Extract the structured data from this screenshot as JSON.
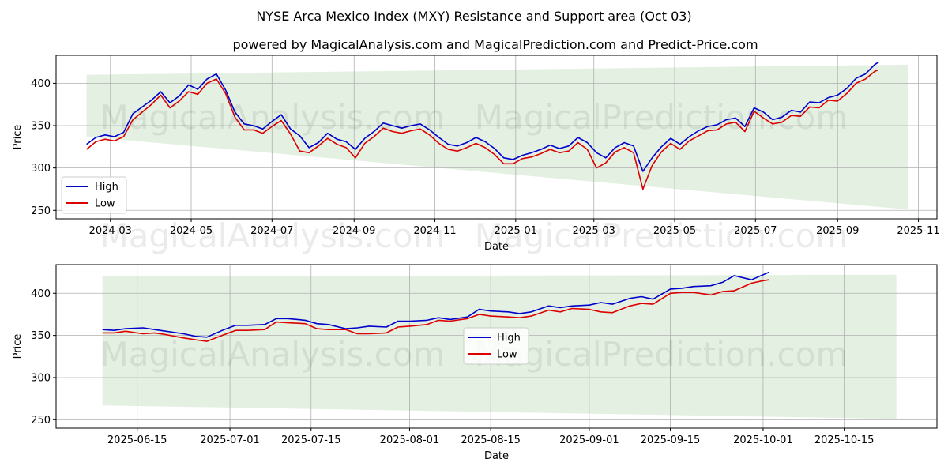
{
  "title": "NYSE Arca Mexico Index (MXY) Resistance and Support area (Oct 03)",
  "subtitle": "powered by MagicalAnalysis.com and MagicalPrediction.com and Predict-Price.com",
  "watermarks": [
    "MagicalAnalysis.com",
    "MagicalPrediction.com"
  ],
  "colors": {
    "high": "#0000cc",
    "low": "#dd0000",
    "band": "#e4f1e2",
    "grid": "#b0b0b0"
  },
  "chart_data": [
    {
      "type": "line",
      "xlabel": "Date",
      "ylabel": "Price",
      "xlim": [
        "2024-01-20",
        "2025-11-15"
      ],
      "ylim": [
        240,
        433
      ],
      "grid": true,
      "legend_position": "lower-left",
      "x_ticks": [
        "2024-03",
        "2024-05",
        "2024-07",
        "2024-09",
        "2024-11",
        "2025-01",
        "2025-03",
        "2025-05",
        "2025-07",
        "2025-09",
        "2025-11"
      ],
      "x_tick_dates": [
        "2024-03-01",
        "2024-05-01",
        "2024-07-01",
        "2024-09-01",
        "2024-11-01",
        "2025-01-01",
        "2025-03-01",
        "2025-05-01",
        "2025-07-01",
        "2025-09-01",
        "2025-11-01"
      ],
      "y_ticks": [
        250,
        300,
        350,
        400
      ],
      "band": {
        "x": [
          "2024-02-12",
          "2025-10-24"
        ],
        "upper": [
          410,
          422
        ],
        "lower": [
          337,
          251
        ]
      },
      "series": [
        {
          "name": "High",
          "x": [
            "2024-02-12",
            "2024-02-19",
            "2024-02-26",
            "2024-03-04",
            "2024-03-11",
            "2024-03-18",
            "2024-03-25",
            "2024-04-01",
            "2024-04-08",
            "2024-04-15",
            "2024-04-22",
            "2024-04-29",
            "2024-05-06",
            "2024-05-13",
            "2024-05-20",
            "2024-05-27",
            "2024-06-03",
            "2024-06-10",
            "2024-06-17",
            "2024-06-24",
            "2024-07-01",
            "2024-07-08",
            "2024-07-15",
            "2024-07-22",
            "2024-07-29",
            "2024-08-05",
            "2024-08-12",
            "2024-08-19",
            "2024-08-26",
            "2024-09-02",
            "2024-09-09",
            "2024-09-16",
            "2024-09-23",
            "2024-09-30",
            "2024-10-07",
            "2024-10-14",
            "2024-10-21",
            "2024-10-28",
            "2024-11-04",
            "2024-11-11",
            "2024-11-18",
            "2024-11-25",
            "2024-12-02",
            "2024-12-09",
            "2024-12-16",
            "2024-12-23",
            "2024-12-30",
            "2025-01-06",
            "2025-01-13",
            "2025-01-20",
            "2025-01-27",
            "2025-02-03",
            "2025-02-10",
            "2025-02-17",
            "2025-02-24",
            "2025-03-03",
            "2025-03-10",
            "2025-03-17",
            "2025-03-24",
            "2025-03-31",
            "2025-04-07",
            "2025-04-14",
            "2025-04-21",
            "2025-04-28",
            "2025-05-05",
            "2025-05-12",
            "2025-05-19",
            "2025-05-26",
            "2025-06-02",
            "2025-06-09",
            "2025-06-16",
            "2025-06-23",
            "2025-06-30",
            "2025-07-07",
            "2025-07-14",
            "2025-07-21",
            "2025-07-28",
            "2025-08-04",
            "2025-08-11",
            "2025-08-18",
            "2025-08-25",
            "2025-09-01",
            "2025-09-08",
            "2025-09-15",
            "2025-09-22",
            "2025-09-29",
            "2025-10-02"
          ],
          "values": [
            328,
            336,
            339,
            337,
            342,
            364,
            372,
            380,
            390,
            377,
            385,
            398,
            393,
            405,
            411,
            392,
            366,
            352,
            350,
            346,
            355,
            363,
            346,
            338,
            324,
            330,
            341,
            334,
            331,
            322,
            335,
            343,
            353,
            350,
            347,
            350,
            352,
            345,
            336,
            328,
            326,
            330,
            336,
            331,
            323,
            312,
            310,
            315,
            318,
            322,
            327,
            323,
            326,
            336,
            330,
            318,
            312,
            324,
            330,
            326,
            296,
            312,
            325,
            335,
            328,
            337,
            344,
            349,
            351,
            357,
            359,
            349,
            371,
            366,
            357,
            360,
            368,
            366,
            378,
            377,
            383,
            386,
            394,
            406,
            411,
            422,
            425
          ]
        },
        {
          "name": "Low",
          "x": [
            "2024-02-12",
            "2024-02-19",
            "2024-02-26",
            "2024-03-04",
            "2024-03-11",
            "2024-03-18",
            "2024-03-25",
            "2024-04-01",
            "2024-04-08",
            "2024-04-15",
            "2024-04-22",
            "2024-04-29",
            "2024-05-06",
            "2024-05-13",
            "2024-05-20",
            "2024-05-27",
            "2024-06-03",
            "2024-06-10",
            "2024-06-17",
            "2024-06-24",
            "2024-07-01",
            "2024-07-08",
            "2024-07-15",
            "2024-07-22",
            "2024-07-29",
            "2024-08-05",
            "2024-08-12",
            "2024-08-19",
            "2024-08-26",
            "2024-09-02",
            "2024-09-09",
            "2024-09-16",
            "2024-09-23",
            "2024-09-30",
            "2024-10-07",
            "2024-10-14",
            "2024-10-21",
            "2024-10-28",
            "2024-11-04",
            "2024-11-11",
            "2024-11-18",
            "2024-11-25",
            "2024-12-02",
            "2024-12-09",
            "2024-12-16",
            "2024-12-23",
            "2024-12-30",
            "2025-01-06",
            "2025-01-13",
            "2025-01-20",
            "2025-01-27",
            "2025-02-03",
            "2025-02-10",
            "2025-02-17",
            "2025-02-24",
            "2025-03-03",
            "2025-03-10",
            "2025-03-17",
            "2025-03-24",
            "2025-03-31",
            "2025-04-07",
            "2025-04-14",
            "2025-04-21",
            "2025-04-28",
            "2025-05-05",
            "2025-05-12",
            "2025-05-19",
            "2025-05-26",
            "2025-06-02",
            "2025-06-09",
            "2025-06-16",
            "2025-06-23",
            "2025-06-30",
            "2025-07-07",
            "2025-07-14",
            "2025-07-21",
            "2025-07-28",
            "2025-08-04",
            "2025-08-11",
            "2025-08-18",
            "2025-08-25",
            "2025-09-01",
            "2025-09-08",
            "2025-09-15",
            "2025-09-22",
            "2025-09-29",
            "2025-10-02"
          ],
          "values": [
            322,
            331,
            334,
            332,
            337,
            357,
            366,
            375,
            386,
            371,
            379,
            390,
            387,
            400,
            405,
            388,
            360,
            345,
            345,
            341,
            349,
            356,
            340,
            320,
            318,
            326,
            335,
            328,
            324,
            312,
            329,
            337,
            347,
            343,
            341,
            344,
            346,
            339,
            329,
            322,
            320,
            324,
            329,
            324,
            316,
            305,
            305,
            311,
            313,
            317,
            322,
            318,
            320,
            330,
            322,
            300,
            306,
            319,
            324,
            318,
            275,
            303,
            319,
            329,
            322,
            332,
            338,
            344,
            345,
            352,
            354,
            343,
            367,
            359,
            352,
            354,
            362,
            361,
            372,
            371,
            380,
            379,
            388,
            400,
            405,
            414,
            416
          ]
        }
      ]
    },
    {
      "type": "line",
      "xlabel": "Date",
      "ylabel": "Price",
      "xlim": [
        "2025-06-01",
        "2025-10-31"
      ],
      "ylim": [
        240,
        434
      ],
      "grid": true,
      "legend_position": "center",
      "x_ticks": [
        "2025-06-15",
        "2025-07-01",
        "2025-07-15",
        "2025-08-01",
        "2025-08-15",
        "2025-09-01",
        "2025-09-15",
        "2025-10-01",
        "2025-10-15"
      ],
      "x_tick_dates": [
        "2025-06-15",
        "2025-07-01",
        "2025-07-15",
        "2025-08-01",
        "2025-08-15",
        "2025-09-01",
        "2025-09-15",
        "2025-10-01",
        "2025-10-15"
      ],
      "y_ticks": [
        250,
        300,
        350,
        400
      ],
      "band": {
        "x": [
          "2025-06-09",
          "2025-10-24"
        ],
        "upper": [
          420,
          422
        ],
        "lower": [
          267,
          251
        ]
      },
      "series": [
        {
          "name": "High",
          "x": [
            "2025-06-09",
            "2025-06-11",
            "2025-06-13",
            "2025-06-16",
            "2025-06-18",
            "2025-06-20",
            "2025-06-23",
            "2025-06-25",
            "2025-06-27",
            "2025-06-30",
            "2025-07-02",
            "2025-07-04",
            "2025-07-07",
            "2025-07-09",
            "2025-07-11",
            "2025-07-14",
            "2025-07-16",
            "2025-07-18",
            "2025-07-21",
            "2025-07-23",
            "2025-07-25",
            "2025-07-28",
            "2025-07-30",
            "2025-08-01",
            "2025-08-04",
            "2025-08-06",
            "2025-08-08",
            "2025-08-11",
            "2025-08-13",
            "2025-08-15",
            "2025-08-18",
            "2025-08-20",
            "2025-08-22",
            "2025-08-25",
            "2025-08-27",
            "2025-08-29",
            "2025-09-01",
            "2025-09-03",
            "2025-09-05",
            "2025-09-08",
            "2025-09-10",
            "2025-09-12",
            "2025-09-15",
            "2025-09-17",
            "2025-09-19",
            "2025-09-22",
            "2025-09-24",
            "2025-09-26",
            "2025-09-29",
            "2025-10-01",
            "2025-10-02"
          ],
          "values": [
            357,
            356,
            358,
            359,
            357,
            355,
            352,
            349,
            348,
            357,
            362,
            362,
            363,
            370,
            370,
            368,
            364,
            363,
            358,
            359,
            361,
            360,
            367,
            367,
            368,
            371,
            369,
            372,
            381,
            379,
            378,
            376,
            378,
            385,
            383,
            385,
            386,
            389,
            387,
            394,
            396,
            393,
            405,
            406,
            408,
            409,
            413,
            421,
            416,
            422,
            425
          ]
        },
        {
          "name": "Low",
          "x": [
            "2025-06-09",
            "2025-06-11",
            "2025-06-13",
            "2025-06-16",
            "2025-06-18",
            "2025-06-20",
            "2025-06-23",
            "2025-06-25",
            "2025-06-27",
            "2025-06-30",
            "2025-07-02",
            "2025-07-04",
            "2025-07-07",
            "2025-07-09",
            "2025-07-11",
            "2025-07-14",
            "2025-07-16",
            "2025-07-18",
            "2025-07-21",
            "2025-07-23",
            "2025-07-25",
            "2025-07-28",
            "2025-07-30",
            "2025-08-01",
            "2025-08-04",
            "2025-08-06",
            "2025-08-08",
            "2025-08-11",
            "2025-08-13",
            "2025-08-15",
            "2025-08-18",
            "2025-08-20",
            "2025-08-22",
            "2025-08-25",
            "2025-08-27",
            "2025-08-29",
            "2025-09-01",
            "2025-09-03",
            "2025-09-05",
            "2025-09-08",
            "2025-09-10",
            "2025-09-12",
            "2025-09-15",
            "2025-09-17",
            "2025-09-19",
            "2025-09-22",
            "2025-09-24",
            "2025-09-26",
            "2025-09-29",
            "2025-10-01",
            "2025-10-02"
          ],
          "values": [
            353,
            353,
            355,
            352,
            353,
            351,
            347,
            345,
            343,
            351,
            356,
            356,
            357,
            366,
            365,
            364,
            358,
            357,
            357,
            352,
            352,
            353,
            360,
            361,
            363,
            368,
            367,
            370,
            375,
            373,
            372,
            371,
            373,
            380,
            378,
            382,
            381,
            378,
            377,
            385,
            388,
            387,
            400,
            401,
            401,
            398,
            402,
            403,
            412,
            415,
            416
          ]
        }
      ]
    }
  ]
}
